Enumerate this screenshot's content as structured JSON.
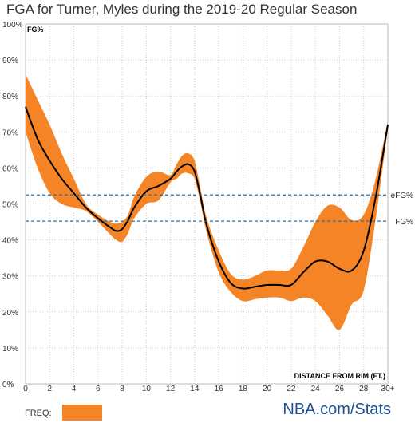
{
  "title": "FGA for Turner, Myles during the 2019-20 Regular Season",
  "legend": {
    "label": "FREQ:",
    "color": "#f58426"
  },
  "source": "NBA.com/Stats",
  "colors": {
    "band": "#f58426",
    "line": "#000000",
    "reference": "#2a6e9e",
    "grid": "#cccccc"
  },
  "chart_data": {
    "type": "line",
    "title": "FGA for Turner, Myles during the 2019-20 Regular Season",
    "xlabel": "DISTANCE FROM RIM (FT.)",
    "ylabel": "FG%",
    "xlim": [
      0,
      30
    ],
    "ylim": [
      0,
      100
    ],
    "x_ticks": [
      {
        "value": 0,
        "label": "0"
      },
      {
        "value": 2,
        "label": "2"
      },
      {
        "value": 4,
        "label": "4"
      },
      {
        "value": 6,
        "label": "6"
      },
      {
        "value": 8,
        "label": "8"
      },
      {
        "value": 10,
        "label": "10"
      },
      {
        "value": 12,
        "label": "12"
      },
      {
        "value": 14,
        "label": "14"
      },
      {
        "value": 16,
        "label": "16"
      },
      {
        "value": 18,
        "label": "18"
      },
      {
        "value": 20,
        "label": "20"
      },
      {
        "value": 22,
        "label": "22"
      },
      {
        "value": 24,
        "label": "24"
      },
      {
        "value": 26,
        "label": "26"
      },
      {
        "value": 28,
        "label": "28"
      },
      {
        "value": 30,
        "label": "30+"
      }
    ],
    "y_ticks": [
      {
        "value": 0,
        "label": "0%"
      },
      {
        "value": 10,
        "label": "10%"
      },
      {
        "value": 20,
        "label": "20%"
      },
      {
        "value": 30,
        "label": "30%"
      },
      {
        "value": 40,
        "label": "40%"
      },
      {
        "value": 50,
        "label": "50%"
      },
      {
        "value": 60,
        "label": "60%"
      },
      {
        "value": 70,
        "label": "70%"
      },
      {
        "value": 80,
        "label": "80%"
      },
      {
        "value": 90,
        "label": "90%"
      },
      {
        "value": 100,
        "label": "100%"
      }
    ],
    "grid": true,
    "series": [
      {
        "name": "FG%",
        "x": [
          0,
          1,
          2,
          3,
          4,
          5,
          6,
          7,
          7.5,
          8,
          8.5,
          9,
          10,
          11,
          12,
          12.5,
          13,
          13.5,
          14,
          14.5,
          15,
          16,
          17,
          18,
          19,
          20,
          21,
          22,
          23,
          24,
          25,
          26,
          27,
          28,
          29,
          30
        ],
        "y": [
          77,
          68,
          62,
          57,
          53,
          49,
          46,
          43.5,
          42.5,
          43,
          45.5,
          49,
          53.5,
          55,
          57,
          59,
          60.5,
          61,
          59,
          52,
          44,
          34,
          28,
          26.5,
          27,
          27.5,
          27.5,
          27.5,
          31,
          34,
          34,
          32,
          31.5,
          37,
          52,
          72
        ]
      }
    ],
    "band": {
      "name": "FREQ",
      "x": [
        0,
        1,
        2,
        3,
        4,
        5,
        6,
        7,
        7.5,
        8,
        8.5,
        9,
        10,
        11,
        12,
        12.5,
        13,
        13.5,
        14,
        14.5,
        15,
        16,
        17,
        18,
        19,
        20,
        21,
        22,
        23,
        24,
        25,
        26,
        27,
        28,
        29,
        30
      ],
      "upper": [
        86,
        79,
        72,
        64,
        57,
        50,
        47,
        45,
        44.5,
        45,
        47,
        52,
        57.5,
        59,
        58,
        61,
        63.5,
        64,
        62,
        54,
        46,
        37,
        30.5,
        29,
        30,
        31.5,
        31.5,
        32,
        38,
        45,
        49.5,
        49,
        45.5,
        47,
        57,
        73
      ],
      "lower": [
        70,
        60,
        53,
        50,
        49,
        48,
        45,
        41.5,
        40,
        39.5,
        42,
        46,
        50,
        51,
        56,
        57,
        58.5,
        58.5,
        57,
        50,
        42,
        31,
        25.5,
        23,
        23.5,
        24,
        24,
        23,
        24,
        23,
        19,
        15,
        22,
        26,
        46,
        71
      ]
    },
    "reference_lines": [
      {
        "label": "eFG%",
        "value": 52.5
      },
      {
        "label": "FG%",
        "value": 45.2
      }
    ]
  }
}
